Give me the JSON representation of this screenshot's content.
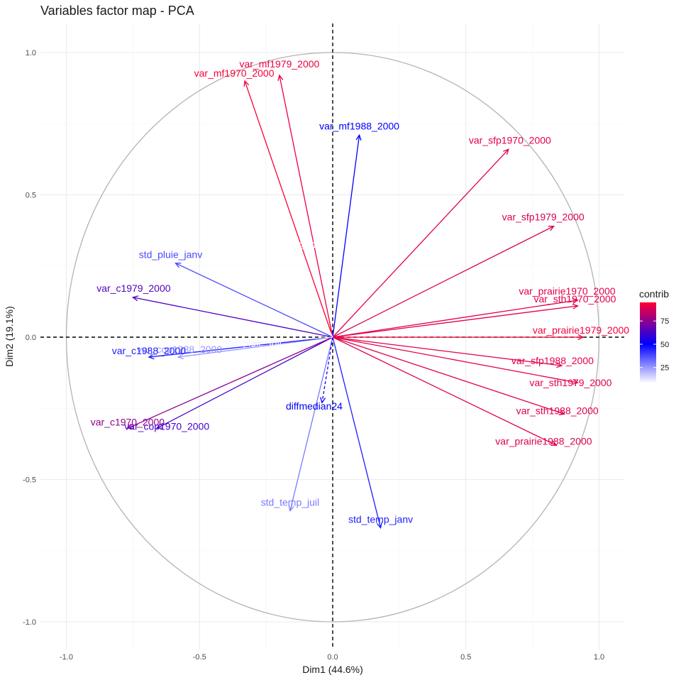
{
  "chart_data": {
    "type": "scatter",
    "title": "Variables factor map - PCA",
    "xlabel": "Dim1 (44.6%)",
    "ylabel": "Dim2 (19.1%)",
    "xlim": [
      -1.1,
      1.1
    ],
    "ylim": [
      -1.08,
      1.08
    ],
    "x_ticks": [
      -1.0,
      -0.5,
      0.0,
      0.5,
      1.0
    ],
    "x_tick_labels": [
      "-1.0",
      "-0.5",
      "0.0",
      "0.5",
      "1.0"
    ],
    "y_ticks": [
      -1.0,
      -0.5,
      0.0,
      0.5,
      1.0
    ],
    "y_tick_labels": [
      "-1.0",
      "-0.5",
      "0.0",
      "0.5",
      "1.0"
    ],
    "grid": true,
    "correlation_circle": true,
    "reference_lines": [
      0,
      0
    ],
    "legend": {
      "title": "contrib",
      "position": "right",
      "ticks": [
        25,
        50,
        75
      ],
      "tick_labels": [
        "25",
        "50",
        "75"
      ],
      "range": [
        8,
        95
      ],
      "colors": {
        "low": "#ffffff",
        "mid": "#0000ff",
        "high": "#ff0033"
      },
      "midpoint": 50
    },
    "variables": [
      {
        "name": "var_mf1979_2000",
        "x": -0.2,
        "y": 0.92,
        "contrib": 92
      },
      {
        "name": "var_mf1970_2000",
        "x": -0.33,
        "y": 0.9,
        "contrib": 94
      },
      {
        "name": "var_mf1988_2000",
        "x": 0.1,
        "y": 0.71,
        "contrib": 50
      },
      {
        "name": "var_sfp1970_2000",
        "x": 0.66,
        "y": 0.66,
        "contrib": 90
      },
      {
        "name": "var_sfp1979_2000",
        "x": 0.83,
        "y": 0.39,
        "contrib": 88
      },
      {
        "name": "var_prairie1970_2000",
        "x": 0.92,
        "y": 0.13,
        "contrib": 90
      },
      {
        "name": "var_sth1970_2000",
        "x": 0.92,
        "y": 0.11,
        "contrib": 90
      },
      {
        "name": "var_prairie1979_2000",
        "x": 0.94,
        "y": 0.0,
        "contrib": 93
      },
      {
        "name": "var_sfp1988_2000",
        "x": 0.86,
        "y": -0.1,
        "contrib": 90
      },
      {
        "name": "var_sth1979_2000",
        "x": 0.92,
        "y": -0.16,
        "contrib": 90
      },
      {
        "name": "var_sth1988_2000",
        "x": 0.87,
        "y": -0.27,
        "contrib": 90
      },
      {
        "name": "var_prairie1988_2000",
        "x": 0.84,
        "y": -0.38,
        "contrib": 89
      },
      {
        "name": "std_temp_janv",
        "x": 0.18,
        "y": -0.67,
        "contrib": 45
      },
      {
        "name": "std_temp_juil",
        "x": -0.16,
        "y": -0.61,
        "contrib": 30
      },
      {
        "name": "diffmedian24",
        "x": -0.04,
        "y": -0.23,
        "contrib": 50
      },
      {
        "name": "var_cop1970_2000",
        "x": -0.66,
        "y": -0.32,
        "contrib": 62
      },
      {
        "name": "var_c1970_2000",
        "x": -0.77,
        "y": -0.32,
        "contrib": 75
      },
      {
        "name": "var_cop1988_2000",
        "x": -0.58,
        "y": -0.07,
        "contrib": 25
      },
      {
        "name": "var_c1988_2000",
        "x": -0.69,
        "y": -0.07,
        "contrib": 45
      },
      {
        "name": "var_c1979_2000",
        "x": -0.75,
        "y": 0.14,
        "contrib": 64
      },
      {
        "name": "std_pluie_janv",
        "x": -0.59,
        "y": 0.26,
        "contrib": 38
      },
      {
        "name": "var_cop1979_2000",
        "x": -0.15,
        "y": 0.28,
        "contrib": 8
      },
      {
        "name": "std_pluie_juil",
        "x": -0.3,
        "y": -0.02,
        "contrib": 10
      }
    ]
  }
}
